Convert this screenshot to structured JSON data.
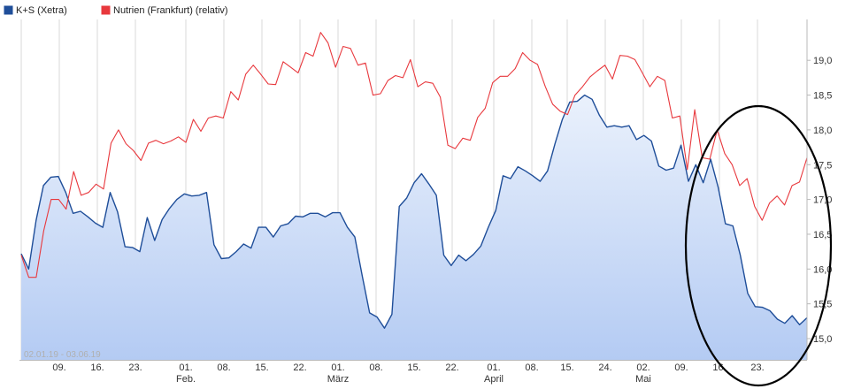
{
  "chart_data": {
    "type": "area",
    "date_range_label": "02.01.19 - 03.06.19",
    "legend": [
      {
        "name": "K+S (Xetra)",
        "color": "#1f4e99"
      },
      {
        "name": "Nutrien (Frankfurt) (relativ)",
        "color": "#e8383d"
      }
    ],
    "ylim": [
      14.8,
      19.4
    ],
    "y_ticks": [
      "15,0",
      "15,5",
      "16,0",
      "16,5",
      "17,0",
      "17,5",
      "18,0",
      "18,5",
      "19,0"
    ],
    "x_tick_labels": [
      "09.",
      "16.",
      "23.",
      "01.",
      "08.",
      "15.",
      "22.",
      "01.",
      "08.",
      "15.",
      "22.",
      "01.",
      "08.",
      "15.",
      "24.",
      "02.",
      "09.",
      "16.",
      "23."
    ],
    "month_labels": [
      "Feb.",
      "März",
      "April",
      "Mai"
    ],
    "grid": "vertical",
    "annotation": "black ellipse drawn around the last weeks (mid May to early June)",
    "series": [
      {
        "name": "K+S (Xetra)",
        "color": "#1f4e99",
        "fill": "area",
        "values": [
          16.22,
          16.0,
          16.7,
          17.2,
          17.32,
          17.33,
          17.1,
          16.8,
          16.83,
          16.75,
          16.66,
          16.6,
          17.1,
          16.82,
          16.32,
          16.31,
          16.25,
          16.74,
          16.41,
          16.71,
          16.87,
          17.0,
          17.08,
          17.05,
          17.06,
          17.1,
          16.35,
          16.15,
          16.16,
          16.25,
          16.36,
          16.3,
          16.6,
          16.6,
          16.46,
          16.62,
          16.65,
          16.76,
          16.75,
          16.8,
          16.8,
          16.75,
          16.81,
          16.81,
          16.6,
          16.46,
          15.9,
          15.37,
          15.31,
          15.15,
          15.35,
          16.9,
          17.02,
          17.24,
          17.37,
          17.22,
          17.06,
          16.2,
          16.05,
          16.2,
          16.12,
          16.21,
          16.33,
          16.6,
          16.84,
          17.34,
          17.3,
          17.47,
          17.41,
          17.34,
          17.26,
          17.41,
          17.8,
          18.15,
          18.4,
          18.41,
          18.5,
          18.44,
          18.21,
          18.04,
          18.06,
          18.04,
          18.06,
          17.86,
          17.92,
          17.84,
          17.48,
          17.42,
          17.45,
          17.78,
          17.26,
          17.5,
          17.24,
          17.58,
          17.18,
          16.65,
          16.62,
          16.2,
          15.65,
          15.46,
          15.45,
          15.4,
          15.28,
          15.22,
          15.33,
          15.2,
          15.3
        ]
      },
      {
        "name": "Nutrien (Frankfurt) (relativ)",
        "color": "#e8383d",
        "fill": "none",
        "values": [
          16.2,
          15.88,
          15.88,
          16.55,
          17.0,
          17.0,
          16.86,
          17.4,
          17.06,
          17.1,
          17.22,
          17.15,
          17.81,
          18.0,
          17.8,
          17.7,
          17.56,
          17.81,
          17.85,
          17.8,
          17.84,
          17.9,
          17.82,
          18.15,
          17.98,
          18.17,
          18.2,
          18.17,
          18.55,
          18.43,
          18.8,
          18.93,
          18.8,
          18.66,
          18.65,
          18.98,
          18.9,
          18.82,
          19.11,
          19.06,
          19.4,
          19.25,
          18.9,
          19.2,
          19.17,
          18.93,
          18.96,
          18.5,
          18.52,
          18.71,
          18.78,
          18.75,
          19.01,
          18.62,
          18.69,
          18.67,
          18.47,
          17.78,
          17.73,
          17.88,
          17.85,
          18.18,
          18.31,
          18.68,
          18.77,
          18.77,
          18.88,
          19.11,
          19.0,
          18.94,
          18.63,
          18.37,
          18.27,
          18.22,
          18.5,
          18.62,
          18.76,
          18.85,
          18.93,
          18.73,
          19.07,
          19.06,
          19.01,
          18.82,
          18.62,
          18.77,
          18.71,
          18.17,
          18.2,
          17.43,
          18.29,
          17.6,
          17.58,
          18.0,
          17.66,
          17.5,
          17.2,
          17.3,
          16.9,
          16.7,
          16.95,
          17.05,
          16.92,
          17.2,
          17.25,
          17.6
        ]
      }
    ]
  }
}
